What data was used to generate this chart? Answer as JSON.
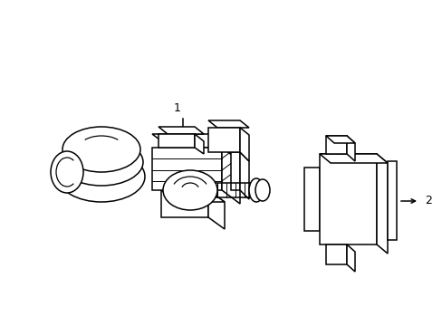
{
  "background_color": "#ffffff",
  "line_color": "#000000",
  "line_width": 1.1,
  "label_1": "1",
  "label_2": "2",
  "fig_width": 4.89,
  "fig_height": 3.6,
  "dpi": 100
}
